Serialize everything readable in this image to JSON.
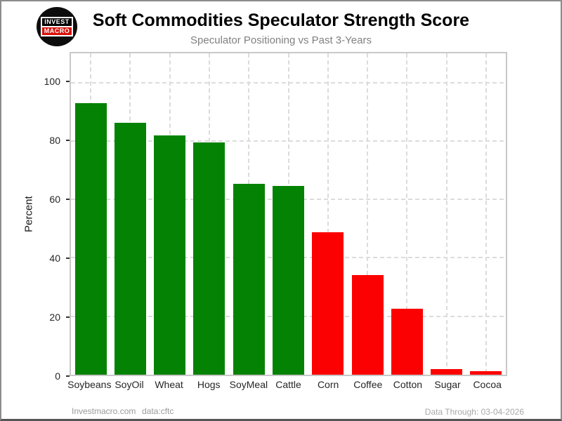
{
  "header": {
    "title": "Soft Commodities Speculator Strength Score",
    "subtitle": "Speculator Positioning vs Past 3-Years",
    "logo": {
      "line1": "INVEST",
      "line2": "MACRO"
    }
  },
  "footer": {
    "site": "Investmacro.com",
    "source": "data:cftc",
    "data_through": "Data Through: 03-04-2026"
  },
  "chart_data": {
    "type": "bar",
    "title": "Soft Commodities Speculator Strength Score",
    "subtitle": "Speculator Positioning vs Past 3-Years",
    "xlabel": "",
    "ylabel": "Percent",
    "ylim": [
      0,
      110
    ],
    "yticks": [
      0,
      20,
      40,
      60,
      80,
      100
    ],
    "grid": "dashed both axes, light gray",
    "legend": "none",
    "categories": [
      "Soybeans",
      "SoyOil",
      "Wheat",
      "Hogs",
      "SoyMeal",
      "Cattle",
      "Corn",
      "Coffee",
      "Cotton",
      "Sugar",
      "Cocoa"
    ],
    "values": [
      93.0,
      86.3,
      81.9,
      79.6,
      65.3,
      64.7,
      48.7,
      34.2,
      22.6,
      2.0,
      1.3
    ],
    "bar_color_keys": [
      "green",
      "green",
      "green",
      "green",
      "green",
      "green",
      "red",
      "red",
      "red",
      "red",
      "red"
    ],
    "colors": {
      "green": "#048204",
      "red": "#fc0101"
    }
  }
}
